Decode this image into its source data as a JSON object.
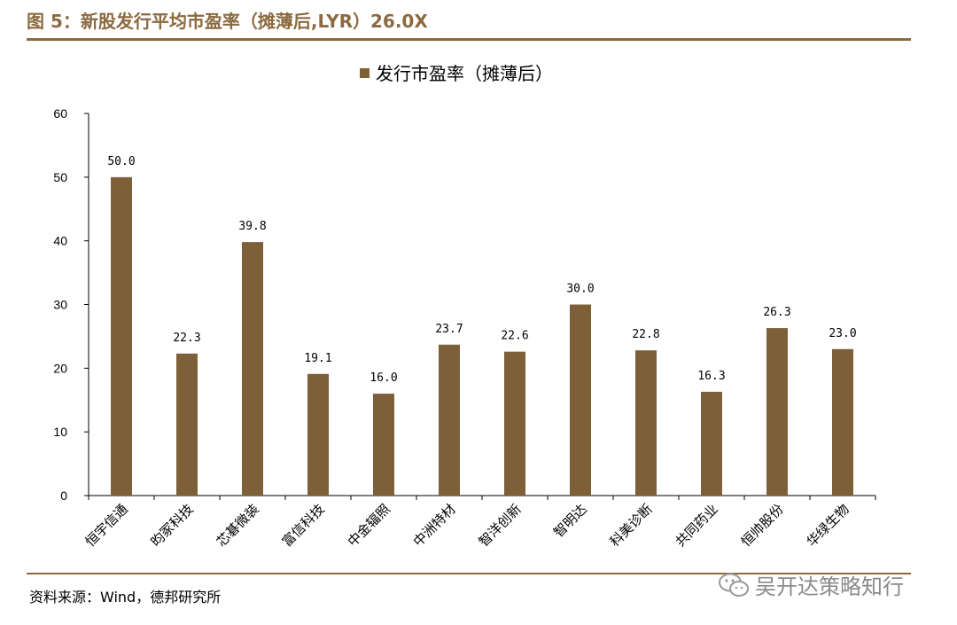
{
  "header": {
    "figure_title": "图 5：新股发行平均市盈率（摊薄后,LYR）26.0X"
  },
  "footer": {
    "source": "资料来源：Wind，德邦研究所",
    "watermark_text": "吴开达策略知行",
    "watermark_icon": "wechat-icon"
  },
  "colors": {
    "bar": "#7d6038",
    "accent": "#8b6a40"
  },
  "chart_data": {
    "type": "bar",
    "title": "",
    "xlabel": "",
    "ylabel": "",
    "ylim": [
      0,
      60
    ],
    "yticks": [
      0,
      10,
      20,
      30,
      40,
      50,
      60
    ],
    "grid": false,
    "legend_position": "top-center",
    "categories": [
      "恒宇信通",
      "昀冢科技",
      "芯碁微装",
      "富信科技",
      "中金辐照",
      "中洲特材",
      "智洋创新",
      "智明达",
      "科美诊断",
      "共同药业",
      "恒帅股份",
      "华绿生物"
    ],
    "series": [
      {
        "name": "发行市盈率（摊薄后）",
        "values": [
          50.0,
          22.3,
          39.8,
          19.1,
          16.0,
          23.7,
          22.6,
          30.0,
          22.8,
          16.3,
          26.3,
          23.0
        ],
        "labels": [
          "50.0",
          "22.3",
          "39.8",
          "19.1",
          "16.0",
          "23.7",
          "22.6",
          "30.0",
          "22.8",
          "16.3",
          "26.3",
          "23.0"
        ]
      }
    ]
  }
}
